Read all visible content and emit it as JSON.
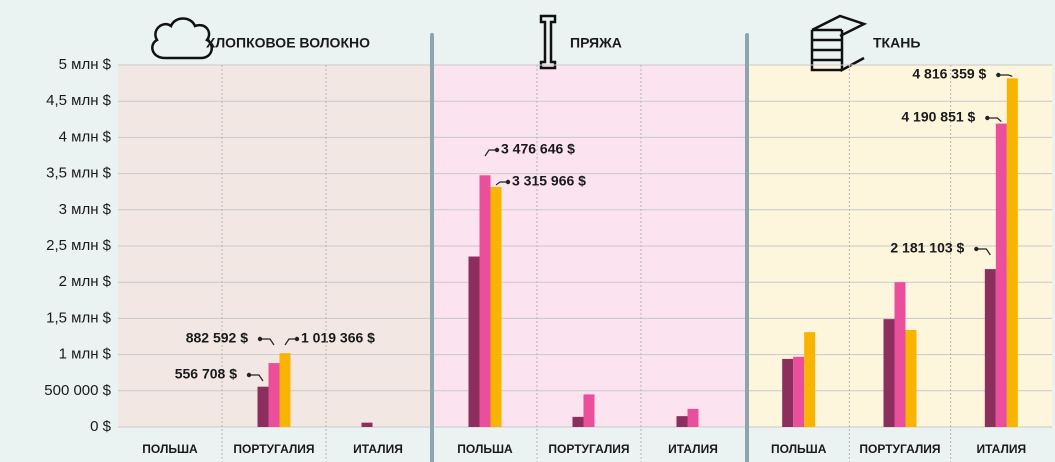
{
  "chart_data": {
    "type": "bar",
    "ylim": [
      0,
      5000000
    ],
    "yticks": [
      {
        "value": 0,
        "label": "0 $"
      },
      {
        "value": 500000,
        "label": "500 000 $"
      },
      {
        "value": 1000000,
        "label": "1 млн $"
      },
      {
        "value": 1500000,
        "label": "1,5 млн $"
      },
      {
        "value": 2000000,
        "label": "2 млн $"
      },
      {
        "value": 2500000,
        "label": "2,5 млн $"
      },
      {
        "value": 3000000,
        "label": "3 млн $"
      },
      {
        "value": 3500000,
        "label": "3,5 млн $"
      },
      {
        "value": 4000000,
        "label": "4 млн $"
      },
      {
        "value": 4500000,
        "label": "4,5 млн $"
      },
      {
        "value": 5000000,
        "label": "5 млн $"
      }
    ],
    "grid": true,
    "panels": [
      {
        "title": "ХЛОПКОВОЕ ВОЛОКНО",
        "background": "#f3e7e3",
        "categories": [
          "ПОЛЬША",
          "ПОРТУГАЛИЯ",
          "ИТАЛИЯ"
        ],
        "series": [
          {
            "color": "#8c2f5f",
            "values": [
              0,
              556708,
              60000
            ],
            "value_labels": [
              null,
              "556 708 $",
              null
            ]
          },
          {
            "color": "#ea4f9b",
            "values": [
              0,
              882592,
              0
            ],
            "value_labels": [
              null,
              "882 592 $",
              null
            ]
          },
          {
            "color": "#f8b400",
            "values": [
              0,
              1019366,
              0
            ],
            "value_labels": [
              null,
              "1 019 366 $",
              null
            ]
          }
        ]
      },
      {
        "title": "ПРЯЖА",
        "background": "#fbe3ef",
        "categories": [
          "ПОЛЬША",
          "ПОРТУГАЛИЯ",
          "ИТАЛИЯ"
        ],
        "series": [
          {
            "color": "#8c2f5f",
            "values": [
              2354769,
              140000,
              150000
            ],
            "value_labels": [
              null,
              null,
              null
            ]
          },
          {
            "color": "#ea4f9b",
            "values": [
              3476646,
              450000,
              250000
            ],
            "value_labels": [
              "3 476 646 $",
              null,
              null
            ]
          },
          {
            "color": "#f8b400",
            "values": [
              3315966,
              0,
              0
            ],
            "value_labels": [
              "3 315 966 $",
              null,
              null
            ]
          }
        ]
      },
      {
        "title": "ТКАНЬ",
        "background": "#fdf6dc",
        "categories": [
          "ПОЛЬША",
          "ПОРТУГАЛИЯ",
          "ИТАЛИЯ"
        ],
        "series": [
          {
            "color": "#8c2f5f",
            "values": [
              940000,
              1490000,
              2181103
            ],
            "value_labels": [
              null,
              null,
              "2 181 103 $"
            ]
          },
          {
            "color": "#ea4f9b",
            "values": [
              970000,
              2000000,
              4190851
            ],
            "value_labels": [
              null,
              null,
              "4 190 851 $"
            ]
          },
          {
            "color": "#f8b400",
            "values": [
              1310000,
              1340000,
              4816359
            ],
            "value_labels": [
              null,
              null,
              "4 816 359 $"
            ]
          }
        ]
      }
    ]
  }
}
